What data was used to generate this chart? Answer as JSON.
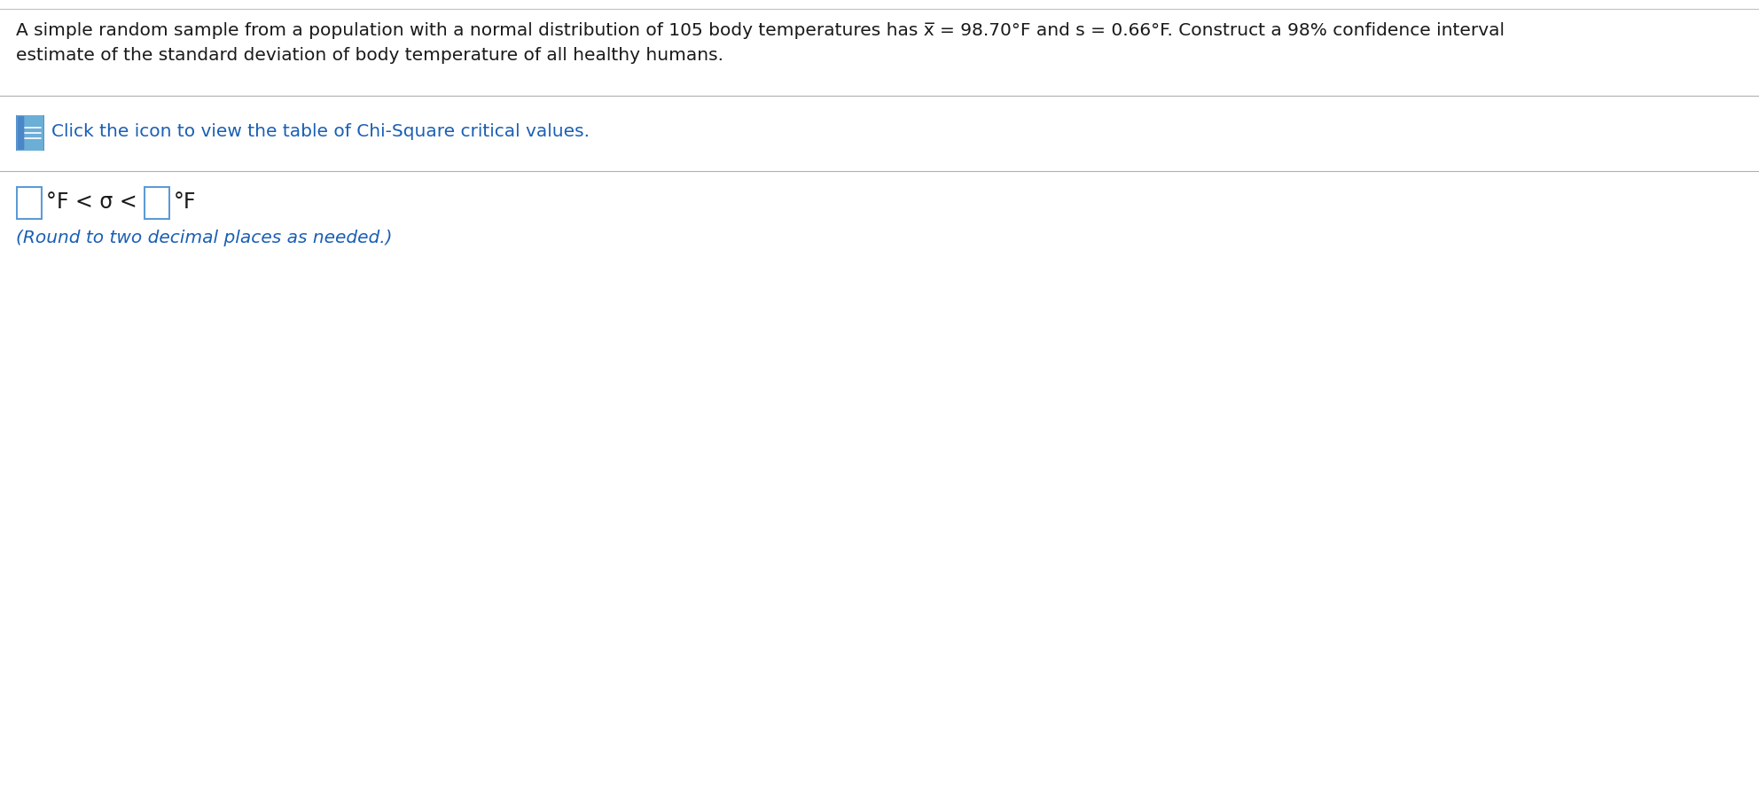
{
  "main_text_line1": "A simple random sample from a population with a normal distribution of 105 body temperatures has x̅ = 98.70°F and s = 0.66°F. Construct a 98% confidence interval",
  "main_text_line2": "estimate of the standard deviation of body temperature of all healthy humans.",
  "click_text": "Click the icon to view the table of Chi-Square critical values.",
  "round_text": "(Round to two decimal places as needed.)",
  "bg_color": "#ffffff",
  "text_color": "#1a1a1a",
  "blue_link_color": "#1a5fb4",
  "box_border_color": "#5b9bd5",
  "separator_color": "#b0b0b0",
  "top_sep_color": "#c0c0c0",
  "main_font_size": 14.5,
  "click_font_size": 14.5,
  "interval_font_size": 17,
  "round_font_size": 14.5,
  "icon_color": "#5b9bd5",
  "icon_color2": "#4a86c8"
}
